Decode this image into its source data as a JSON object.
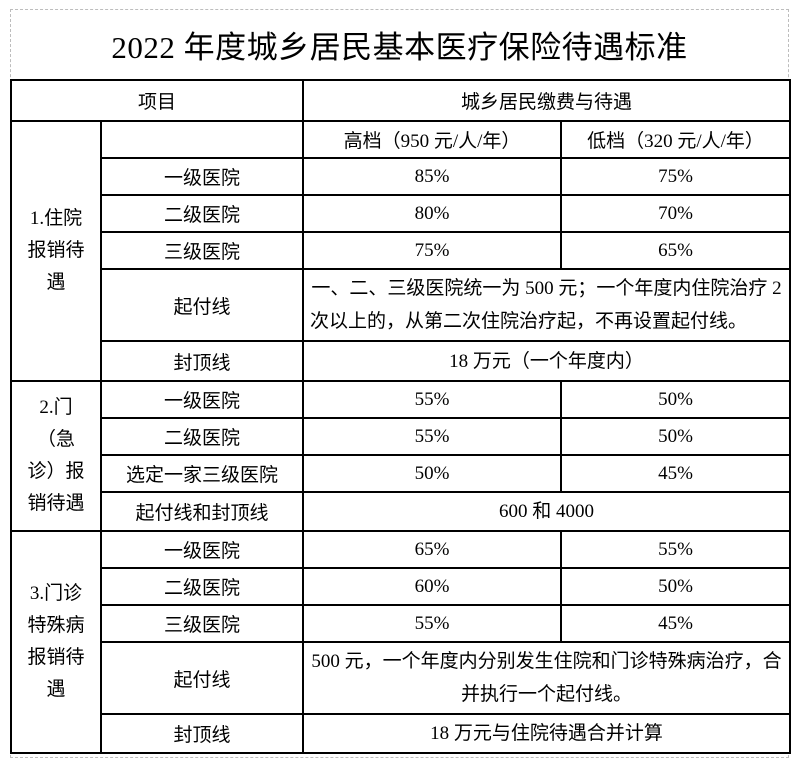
{
  "title": "2022 年度城乡居民基本医疗保险待遇标准",
  "table": {
    "header": {
      "item": "项目",
      "payment": "城乡居民缴费与待遇"
    },
    "tiers": {
      "high": "高档（950 元/人/年）",
      "low": "低档（320 元/人/年）"
    },
    "sections": [
      {
        "group": "1.住院\n报销待\n遇",
        "rows": [
          {
            "label": "一级医院",
            "high": "85%",
            "low": "75%"
          },
          {
            "label": "二级医院",
            "high": "80%",
            "low": "70%"
          },
          {
            "label": "三级医院",
            "high": "75%",
            "low": "65%"
          },
          {
            "label": "起付线",
            "merged": "一、二、三级医院统一为 500 元；一个年度内住院治疗 2 次以上的，从第二次住院治疗起，不再设置起付线。"
          },
          {
            "label": "封顶线",
            "merged": "18 万元（一个年度内）"
          }
        ]
      },
      {
        "group": "2.门\n（急\n诊）报\n销待遇",
        "rows": [
          {
            "label": "一级医院",
            "high": "55%",
            "low": "50%"
          },
          {
            "label": "二级医院",
            "high": "55%",
            "low": "50%"
          },
          {
            "label": "选定一家三级医院",
            "high": "50%",
            "low": "45%"
          },
          {
            "label": "起付线和封顶线",
            "merged": "600 和 4000"
          }
        ]
      },
      {
        "group": "3.门诊\n特殊病\n报销待\n遇",
        "rows": [
          {
            "label": "一级医院",
            "high": "65%",
            "low": "55%"
          },
          {
            "label": "二级医院",
            "high": "60%",
            "low": "50%"
          },
          {
            "label": "三级医院",
            "high": "55%",
            "low": "45%"
          },
          {
            "label": "起付线",
            "merged": "500 元，一个年度内分别发生住院和门诊特殊病治疗，合并执行一个起付线。"
          },
          {
            "label": "封顶线",
            "merged": "18 万元与住院待遇合并计算"
          }
        ]
      }
    ]
  }
}
